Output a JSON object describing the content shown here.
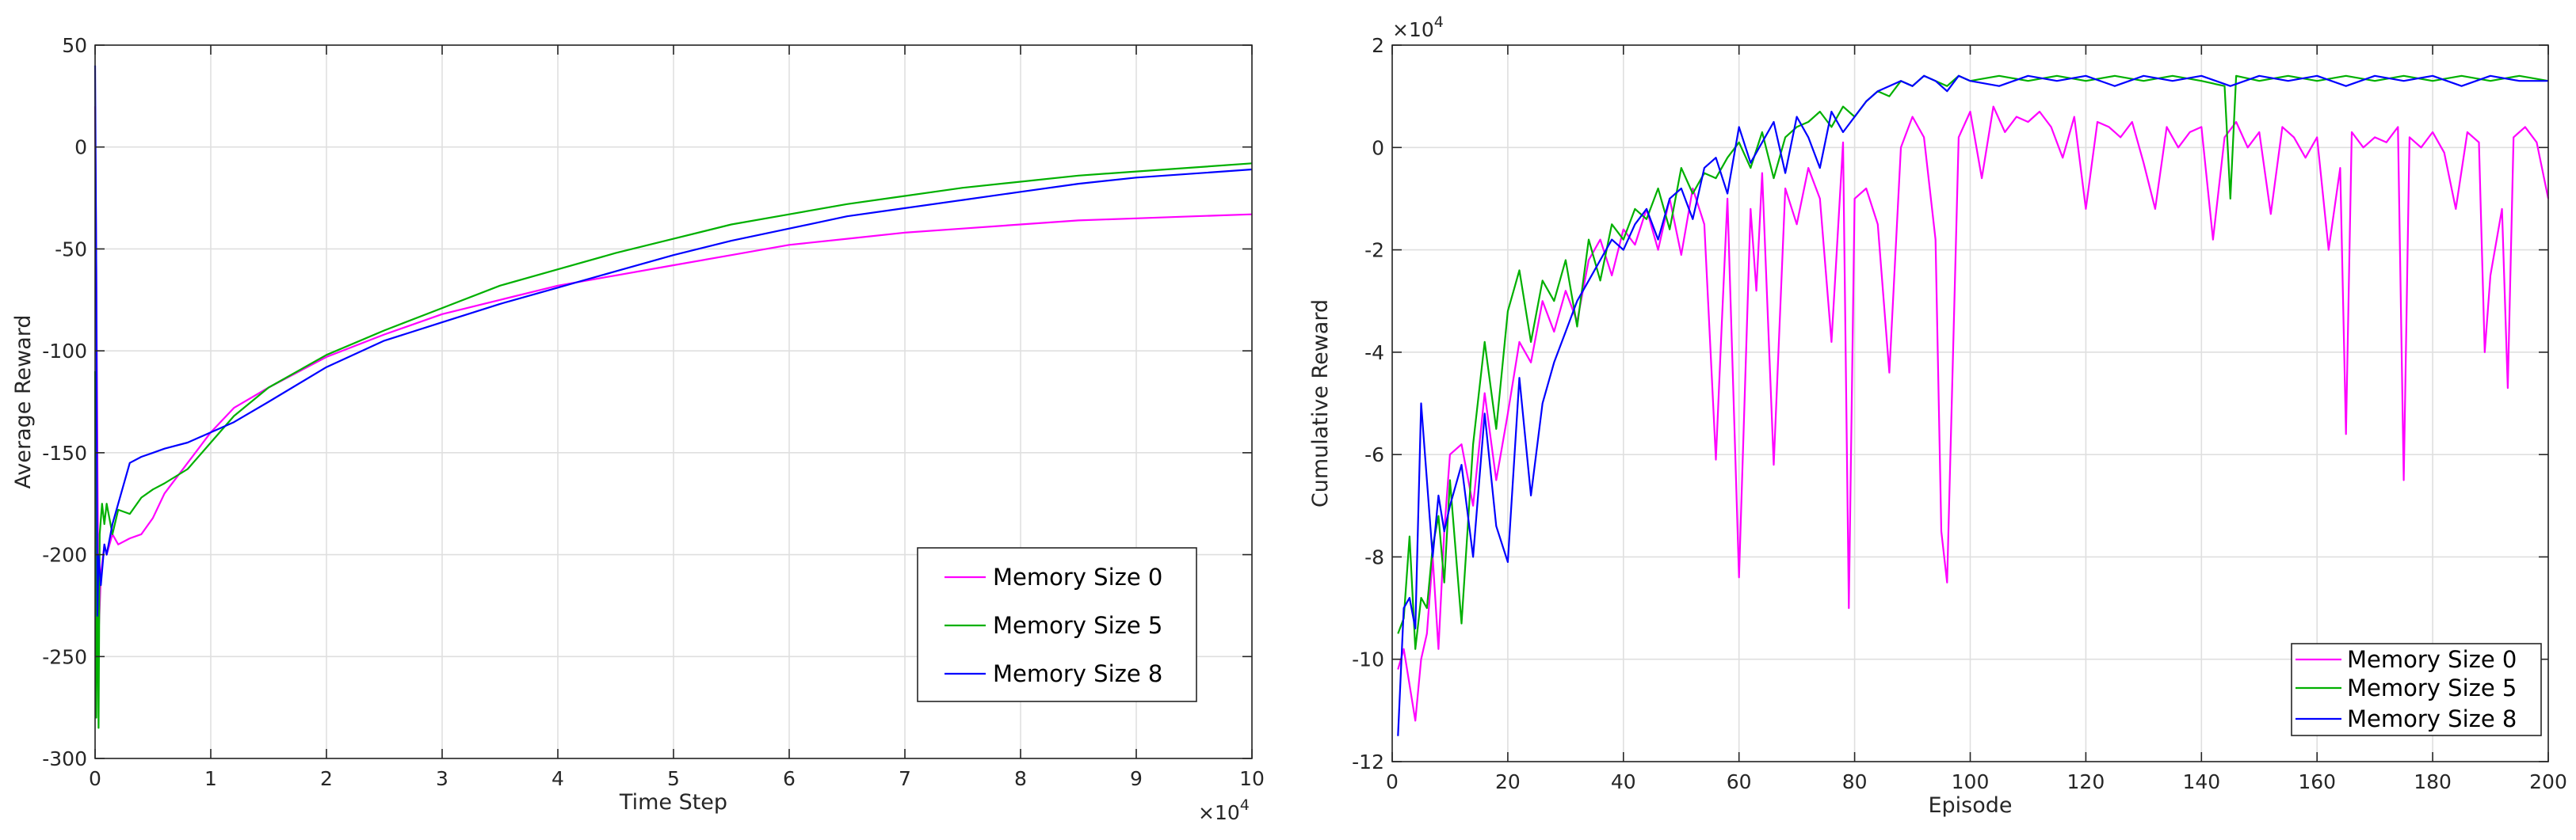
{
  "colors": {
    "mem0": "#ff00ff",
    "mem5": "#00b000",
    "mem8": "#0000ff"
  },
  "chart_data": [
    {
      "type": "line",
      "title": "",
      "xlabel": "Time Step",
      "ylabel": "Average Reward",
      "xlim": [
        0,
        10
      ],
      "ylim": [
        -300,
        50
      ],
      "x_exponent": "×10",
      "x_exponent_power": "4",
      "xticks": [
        0,
        1,
        2,
        3,
        4,
        5,
        6,
        7,
        8,
        9,
        10
      ],
      "xtick_labels": [
        "0",
        "1",
        "2",
        "3",
        "4",
        "5",
        "6",
        "7",
        "8",
        "9",
        "10"
      ],
      "yticks": [
        -300,
        -250,
        -200,
        -150,
        -100,
        -50,
        0,
        50
      ],
      "ytick_labels": [
        "-300",
        "-250",
        "-200",
        "-150",
        "-100",
        "-50",
        "0",
        "50"
      ],
      "grid": true,
      "legend_position": "bottom-right",
      "series": [
        {
          "name": "Memory Size 0",
          "color_key": "mem0",
          "x": [
            0,
            0.01,
            0.02,
            0.03,
            0.05,
            0.08,
            0.1,
            0.15,
            0.2,
            0.3,
            0.4,
            0.5,
            0.6,
            0.8,
            1.0,
            1.2,
            1.5,
            2.0,
            2.5,
            3.0,
            3.5,
            4.0,
            4.5,
            5.0,
            5.5,
            6.0,
            6.5,
            7.0,
            7.5,
            8.0,
            8.5,
            9.0,
            9.5,
            10
          ],
          "y": [
            20,
            -60,
            -150,
            -240,
            -210,
            -195,
            -200,
            -190,
            -195,
            -192,
            -190,
            -182,
            -170,
            -155,
            -140,
            -128,
            -118,
            -103,
            -92,
            -82,
            -75,
            -68,
            -63,
            -58,
            -53,
            -48,
            -45,
            -42,
            -40,
            -38,
            -36,
            -35,
            -34,
            -33
          ]
        },
        {
          "name": "Memory Size 5",
          "color_key": "mem5",
          "x": [
            0,
            0.01,
            0.02,
            0.03,
            0.04,
            0.06,
            0.08,
            0.1,
            0.15,
            0.2,
            0.3,
            0.4,
            0.5,
            0.6,
            0.8,
            1.0,
            1.2,
            1.5,
            2.0,
            2.5,
            3.0,
            3.5,
            4.0,
            4.5,
            5.0,
            5.5,
            6.0,
            6.5,
            7.0,
            7.5,
            8.0,
            8.5,
            9.0,
            9.5,
            10
          ],
          "y": [
            -110,
            -280,
            -200,
            -285,
            -190,
            -175,
            -185,
            -175,
            -190,
            -178,
            -180,
            -172,
            -168,
            -165,
            -158,
            -145,
            -132,
            -118,
            -102,
            -90,
            -79,
            -68,
            -60,
            -52,
            -45,
            -38,
            -33,
            -28,
            -24,
            -20,
            -17,
            -14,
            -12,
            -10,
            -8
          ]
        },
        {
          "name": "Memory Size 8",
          "color_key": "mem8",
          "x": [
            0,
            0.01,
            0.02,
            0.03,
            0.05,
            0.08,
            0.1,
            0.15,
            0.2,
            0.3,
            0.4,
            0.5,
            0.6,
            0.8,
            1.0,
            1.2,
            1.5,
            2.0,
            2.5,
            3.0,
            3.5,
            4.0,
            4.5,
            5.0,
            5.5,
            6.0,
            6.5,
            7.0,
            7.5,
            8.0,
            8.5,
            9.0,
            9.5,
            10
          ],
          "y": [
            40,
            -60,
            -230,
            -200,
            -215,
            -195,
            -200,
            -185,
            -175,
            -155,
            -152,
            -150,
            -148,
            -145,
            -140,
            -135,
            -125,
            -108,
            -95,
            -86,
            -77,
            -69,
            -61,
            -53,
            -46,
            -40,
            -34,
            -30,
            -26,
            -22,
            -18,
            -15,
            -13,
            -11
          ]
        }
      ]
    },
    {
      "type": "line",
      "title": "",
      "xlabel": "Episode",
      "ylabel": "Cumulative Reward",
      "xlim": [
        0,
        200
      ],
      "ylim": [
        -12,
        2
      ],
      "y_exponent": "×10",
      "y_exponent_power": "4",
      "xticks": [
        0,
        20,
        40,
        60,
        80,
        100,
        120,
        140,
        160,
        180,
        200
      ],
      "xtick_labels": [
        "0",
        "20",
        "40",
        "60",
        "80",
        "100",
        "120",
        "140",
        "160",
        "180",
        "200"
      ],
      "yticks": [
        -12,
        -10,
        -8,
        -6,
        -4,
        -2,
        0,
        2
      ],
      "ytick_labels": [
        "-12",
        "-10",
        "-8",
        "-6",
        "-4",
        "-2",
        "0",
        "2"
      ],
      "grid": true,
      "legend_position": "bottom-right",
      "series": [
        {
          "name": "Memory Size 0",
          "color_key": "mem0",
          "x": [
            1,
            2,
            3,
            4,
            5,
            6,
            7,
            8,
            9,
            10,
            12,
            14,
            16,
            18,
            20,
            22,
            24,
            26,
            28,
            30,
            32,
            34,
            36,
            38,
            40,
            42,
            44,
            46,
            48,
            50,
            52,
            54,
            56,
            57,
            58,
            60,
            62,
            63,
            64,
            66,
            68,
            70,
            72,
            74,
            76,
            78,
            79,
            80,
            82,
            84,
            86,
            88,
            90,
            92,
            94,
            95,
            96,
            98,
            100,
            102,
            104,
            106,
            108,
            110,
            112,
            114,
            116,
            118,
            120,
            122,
            124,
            126,
            128,
            130,
            132,
            134,
            136,
            138,
            140,
            142,
            144,
            146,
            148,
            150,
            152,
            154,
            156,
            158,
            160,
            162,
            164,
            165,
            166,
            168,
            170,
            172,
            174,
            175,
            176,
            178,
            180,
            182,
            184,
            186,
            188,
            189,
            190,
            192,
            193,
            194,
            196,
            198,
            200
          ],
          "y": [
            -10.2,
            -9.8,
            -10.5,
            -11.2,
            -10.0,
            -9.5,
            -8.0,
            -9.8,
            -7.5,
            -6.0,
            -5.8,
            -7.0,
            -4.8,
            -6.5,
            -5.2,
            -3.8,
            -4.2,
            -3.0,
            -3.6,
            -2.8,
            -3.4,
            -2.2,
            -1.8,
            -2.5,
            -1.6,
            -1.9,
            -1.2,
            -2.0,
            -1.0,
            -2.1,
            -0.8,
            -1.5,
            -6.1,
            -3.5,
            -1.0,
            -8.4,
            -1.2,
            -2.8,
            -0.5,
            -6.2,
            -0.8,
            -1.5,
            -0.4,
            -1.0,
            -3.8,
            0.1,
            -9.0,
            -1.0,
            -0.8,
            -1.5,
            -4.4,
            0.0,
            0.6,
            0.2,
            -1.8,
            -7.5,
            -8.5,
            0.2,
            0.7,
            -0.6,
            0.8,
            0.3,
            0.6,
            0.5,
            0.7,
            0.4,
            -0.2,
            0.6,
            -1.2,
            0.5,
            0.4,
            0.2,
            0.5,
            -0.3,
            -1.2,
            0.4,
            0.0,
            0.3,
            0.4,
            -1.8,
            0.2,
            0.5,
            0.0,
            0.3,
            -1.3,
            0.4,
            0.2,
            -0.2,
            0.2,
            -2.0,
            -0.4,
            -5.6,
            0.3,
            0.0,
            0.2,
            0.1,
            0.4,
            -6.5,
            0.2,
            0.0,
            0.3,
            -0.1,
            -1.2,
            0.3,
            0.1,
            -4.0,
            -2.5,
            -1.2,
            -4.7,
            0.2,
            0.4,
            0.1,
            -1.0
          ]
        },
        {
          "name": "Memory Size 5",
          "color_key": "mem5",
          "x": [
            1,
            2,
            3,
            4,
            5,
            6,
            7,
            8,
            9,
            10,
            12,
            14,
            16,
            18,
            20,
            22,
            24,
            26,
            28,
            30,
            32,
            34,
            36,
            38,
            40,
            42,
            44,
            46,
            48,
            50,
            52,
            54,
            56,
            58,
            60,
            62,
            64,
            66,
            68,
            70,
            72,
            74,
            76,
            78,
            80,
            82,
            84,
            86,
            88,
            90,
            92,
            94,
            96,
            98,
            100,
            105,
            110,
            115,
            120,
            125,
            130,
            135,
            140,
            144,
            145,
            146,
            150,
            155,
            160,
            165,
            170,
            175,
            180,
            185,
            190,
            195,
            200
          ],
          "y": [
            -9.5,
            -9.2,
            -7.6,
            -9.8,
            -8.8,
            -9.0,
            -7.8,
            -7.2,
            -8.5,
            -6.5,
            -9.3,
            -5.8,
            -3.8,
            -5.5,
            -3.2,
            -2.4,
            -3.8,
            -2.6,
            -3.0,
            -2.2,
            -3.5,
            -1.8,
            -2.6,
            -1.5,
            -1.8,
            -1.2,
            -1.4,
            -0.8,
            -1.6,
            -0.4,
            -0.9,
            -0.5,
            -0.6,
            -0.2,
            0.1,
            -0.4,
            0.3,
            -0.6,
            0.2,
            0.4,
            0.5,
            0.7,
            0.4,
            0.8,
            0.6,
            0.9,
            1.1,
            1.0,
            1.3,
            1.2,
            1.4,
            1.3,
            1.2,
            1.4,
            1.3,
            1.4,
            1.3,
            1.4,
            1.3,
            1.4,
            1.3,
            1.4,
            1.3,
            1.2,
            -1.0,
            1.4,
            1.3,
            1.4,
            1.3,
            1.4,
            1.3,
            1.4,
            1.3,
            1.4,
            1.3,
            1.4,
            1.3
          ]
        },
        {
          "name": "Memory Size 8",
          "color_key": "mem8",
          "x": [
            1,
            2,
            3,
            4,
            5,
            6,
            7,
            8,
            9,
            10,
            12,
            14,
            16,
            18,
            20,
            22,
            24,
            26,
            28,
            30,
            32,
            34,
            36,
            38,
            40,
            42,
            44,
            46,
            48,
            50,
            52,
            54,
            56,
            58,
            60,
            62,
            64,
            66,
            68,
            70,
            72,
            74,
            76,
            78,
            80,
            82,
            84,
            86,
            88,
            90,
            92,
            94,
            96,
            98,
            100,
            105,
            110,
            115,
            120,
            125,
            130,
            135,
            140,
            145,
            150,
            155,
            160,
            165,
            170,
            175,
            180,
            185,
            190,
            195,
            200
          ],
          "y": [
            -11.5,
            -9.0,
            -8.8,
            -9.4,
            -5.0,
            -6.5,
            -8.0,
            -6.8,
            -7.5,
            -7.0,
            -6.2,
            -8.0,
            -5.2,
            -7.4,
            -8.1,
            -4.5,
            -6.8,
            -5.0,
            -4.2,
            -3.6,
            -3.0,
            -2.6,
            -2.2,
            -1.8,
            -2.0,
            -1.5,
            -1.2,
            -1.8,
            -1.0,
            -0.8,
            -1.4,
            -0.4,
            -0.2,
            -0.9,
            0.4,
            -0.3,
            0.1,
            0.5,
            -0.5,
            0.6,
            0.2,
            -0.4,
            0.7,
            0.3,
            0.6,
            0.9,
            1.1,
            1.2,
            1.3,
            1.2,
            1.4,
            1.3,
            1.1,
            1.4,
            1.3,
            1.2,
            1.4,
            1.3,
            1.4,
            1.2,
            1.4,
            1.3,
            1.4,
            1.2,
            1.4,
            1.3,
            1.4,
            1.2,
            1.4,
            1.3,
            1.4,
            1.2,
            1.4,
            1.3,
            1.3
          ]
        }
      ]
    }
  ]
}
